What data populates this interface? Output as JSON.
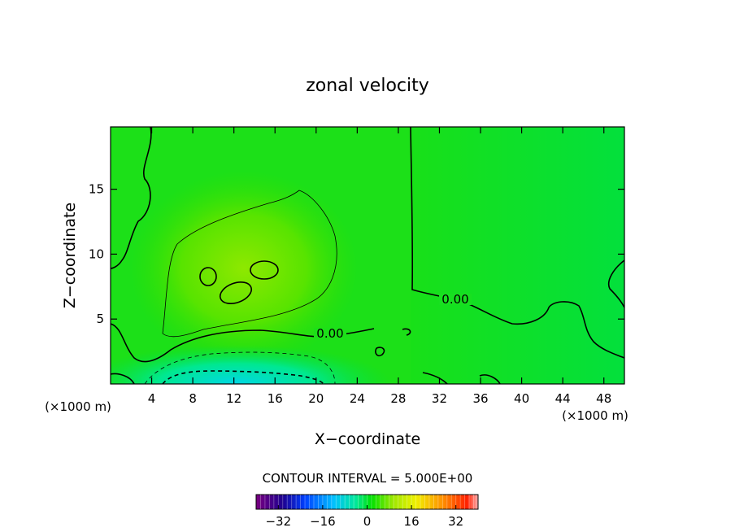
{
  "chart_data": {
    "type": "contour",
    "title": "zonal velocity",
    "xlabel": "X−coordinate",
    "ylabel": "Z−coordinate",
    "x_unit_left": "(×1000 m)",
    "x_unit_right": "(×1000 m)",
    "xlim": [
      0,
      50
    ],
    "ylim": [
      0,
      19.8
    ],
    "x_ticks": [
      4,
      8,
      12,
      16,
      20,
      24,
      28,
      32,
      36,
      40,
      44,
      48
    ],
    "y_ticks": [
      5,
      10,
      15
    ],
    "contour_interval_label": "CONTOUR INTERVAL = 5.000E+00",
    "contour_labels": [
      {
        "text": "0.00",
        "x": 21,
        "z": 3.6
      },
      {
        "text": "0.00",
        "x": 33.5,
        "z": 6.3
      }
    ],
    "colorbar": {
      "range": [
        -40,
        40
      ],
      "ticks": [
        -32,
        -16,
        0,
        16,
        32
      ],
      "tick_labels": [
        "−32",
        "−16",
        "0",
        "16",
        "32"
      ]
    }
  }
}
